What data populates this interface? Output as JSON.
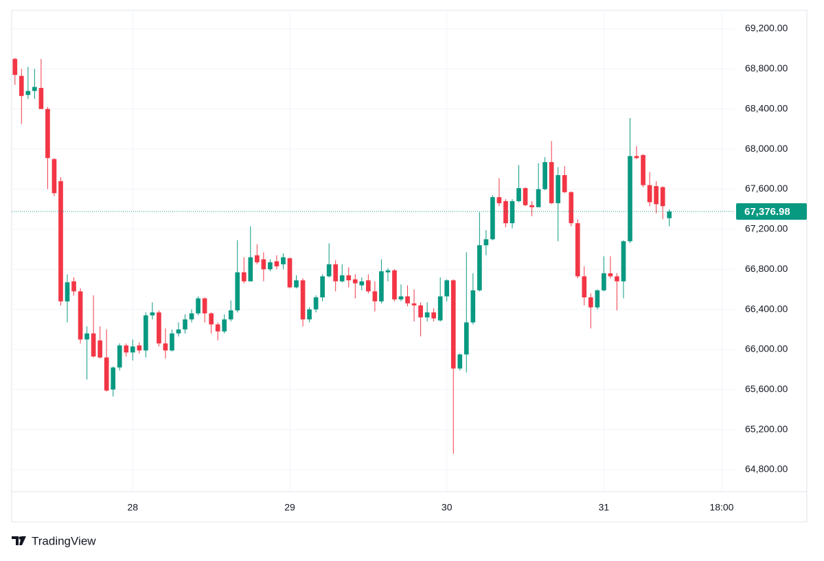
{
  "chart_data": {
    "type": "candlestick",
    "brand": "TradingView",
    "x": [
      6,
      7,
      8,
      9,
      10,
      11,
      12,
      13,
      14,
      15,
      16,
      17,
      18,
      19,
      20,
      21,
      22,
      23,
      24,
      25,
      26,
      27,
      28,
      29,
      30,
      31,
      32,
      33,
      34,
      35,
      36,
      37,
      38,
      39,
      40,
      41,
      42,
      43,
      44,
      45,
      46,
      47,
      48,
      49,
      50,
      51,
      52,
      53,
      54,
      55,
      56,
      57,
      58,
      59,
      60,
      61,
      62,
      63,
      64,
      65,
      66,
      67,
      68,
      69,
      70,
      71,
      72,
      73,
      74,
      75,
      76,
      77,
      78,
      79,
      80,
      81,
      82,
      83,
      84,
      85,
      86,
      87,
      88,
      89,
      90,
      91,
      92,
      93,
      94,
      95,
      96,
      97,
      98,
      99,
      100,
      101,
      102,
      103,
      104,
      105,
      106
    ],
    "open": [
      68900,
      68730,
      68540,
      68580,
      68610,
      68400,
      67900,
      67680,
      66480,
      66680,
      66580,
      66100,
      66160,
      66090,
      65920,
      65600,
      65820,
      66040,
      65970,
      66040,
      65990,
      66340,
      66370,
      66060,
      65990,
      66160,
      66200,
      66300,
      66360,
      66510,
      66360,
      66250,
      66180,
      66300,
      66390,
      66770,
      66680,
      66940,
      66900,
      66800,
      66880,
      66850,
      66910,
      66620,
      66690,
      66300,
      66400,
      66520,
      66730,
      66850,
      66680,
      66740,
      66700,
      66640,
      66690,
      66580,
      66480,
      66770,
      66790,
      66500,
      66530,
      66460,
      66440,
      66320,
      66370,
      66290,
      66530,
      66690,
      65810,
      65950,
      66270,
      66590,
      67040,
      67100,
      67520,
      67480,
      67260,
      67480,
      67610,
      67440,
      67420,
      67600,
      67870,
      67460,
      67740,
      67570,
      67260,
      66730,
      66520,
      66420,
      66590,
      66760,
      66730,
      66680,
      67080,
      67930,
      67940,
      67640,
      67630,
      67620,
      67310
    ],
    "high": [
      68910,
      68800,
      68820,
      68800,
      68900,
      68420,
      67910,
      67720,
      66750,
      66720,
      66610,
      66230,
      66540,
      66230,
      66200,
      65830,
      66060,
      66060,
      66100,
      66070,
      66370,
      66470,
      66390,
      66210,
      66200,
      66270,
      66350,
      66400,
      66530,
      66520,
      66370,
      66270,
      66350,
      66490,
      67090,
      66920,
      67230,
      67050,
      66970,
      66900,
      66940,
      66960,
      66920,
      66740,
      66710,
      66420,
      66540,
      66750,
      67060,
      66890,
      66850,
      66820,
      66750,
      66720,
      66750,
      66680,
      66900,
      66810,
      66800,
      66650,
      66640,
      66600,
      66470,
      66470,
      66410,
      66720,
      66700,
      66700,
      65960,
      66970,
      66760,
      67370,
      67190,
      67540,
      67710,
      67500,
      67500,
      67840,
      67620,
      67480,
      67860,
      67920,
      68080,
      67820,
      67830,
      67580,
      67300,
      66830,
      66560,
      66600,
      66930,
      66930,
      66760,
      67090,
      68310,
      68030,
      67950,
      67770,
      67680,
      67630,
      67400
    ],
    "low": [
      68640,
      68250,
      68500,
      68500,
      68400,
      67600,
      67530,
      66440,
      66270,
      66540,
      66060,
      65700,
      65920,
      65910,
      65580,
      65530,
      65790,
      65930,
      65890,
      65960,
      65920,
      66300,
      66030,
      65910,
      65980,
      66130,
      66160,
      66270,
      66340,
      66270,
      66160,
      66090,
      66160,
      66280,
      66370,
      66660,
      66680,
      66850,
      66680,
      66780,
      66800,
      66800,
      66610,
      66610,
      66230,
      66270,
      66370,
      66480,
      66720,
      66580,
      66670,
      66620,
      66510,
      66590,
      66560,
      66380,
      66460,
      66680,
      66480,
      66480,
      66430,
      66280,
      66130,
      66280,
      66280,
      66280,
      66480,
      64960,
      65790,
      65770,
      66250,
      66580,
      66940,
      67090,
      67430,
      67220,
      67210,
      67470,
      67430,
      67330,
      67420,
      67590,
      67450,
      67080,
      67560,
      67230,
      66710,
      66440,
      66210,
      66400,
      66580,
      66710,
      66390,
      66510,
      67060,
      67900,
      67620,
      67430,
      67360,
      67300,
      67230
    ],
    "close": [
      68740,
      68530,
      68580,
      68620,
      68400,
      67910,
      67560,
      66480,
      66670,
      66580,
      66100,
      66160,
      65930,
      65920,
      65590,
      65820,
      66040,
      65970,
      66030,
      65990,
      66340,
      66370,
      66060,
      65990,
      66160,
      66200,
      66300,
      66360,
      66510,
      66360,
      66250,
      66180,
      66300,
      66390,
      66770,
      66680,
      66920,
      66870,
      66800,
      66870,
      66830,
      66920,
      66620,
      66690,
      66300,
      66400,
      66520,
      66730,
      66850,
      66680,
      66740,
      66690,
      66660,
      66680,
      66580,
      66480,
      66780,
      66790,
      66500,
      66530,
      66460,
      66440,
      66320,
      66370,
      66310,
      66530,
      66690,
      65810,
      65950,
      66270,
      66590,
      67040,
      67100,
      67520,
      67460,
      67260,
      67480,
      67610,
      67440,
      67420,
      67600,
      67870,
      67460,
      67740,
      67570,
      67260,
      66730,
      66520,
      66420,
      66590,
      66760,
      66730,
      66680,
      67080,
      67930,
      67910,
      67640,
      67470,
      67450,
      67430,
      67377
    ],
    "up_color": "#089981",
    "down_color": "#f23645",
    "last_price": {
      "value": 67376.98,
      "label": "67,376.98"
    },
    "xlim": [
      5.5,
      116
    ],
    "xticks": [
      {
        "value": 24,
        "label": "28"
      },
      {
        "value": 48,
        "label": "29"
      },
      {
        "value": 72,
        "label": "30"
      },
      {
        "value": 96,
        "label": "31"
      },
      {
        "value": 114,
        "label": "18:00"
      }
    ],
    "ylim": [
      64581,
      69385
    ],
    "yticks": [
      {
        "value": 64800,
        "label": "64,800.00"
      },
      {
        "value": 65200,
        "label": "65,200.00"
      },
      {
        "value": 65600,
        "label": "65,600.00"
      },
      {
        "value": 66000,
        "label": "66,000.00"
      },
      {
        "value": 66400,
        "label": "66,400.00"
      },
      {
        "value": 66800,
        "label": "66,800.00"
      },
      {
        "value": 67200,
        "label": "67,200.00"
      },
      {
        "value": 67600,
        "label": "67,600.00"
      },
      {
        "value": 68000,
        "label": "68,000.00"
      },
      {
        "value": 68400,
        "label": "68,400.00"
      },
      {
        "value": 68800,
        "label": "68,800.00"
      },
      {
        "value": 69200,
        "label": "69,200.00"
      }
    ],
    "grid": true
  }
}
